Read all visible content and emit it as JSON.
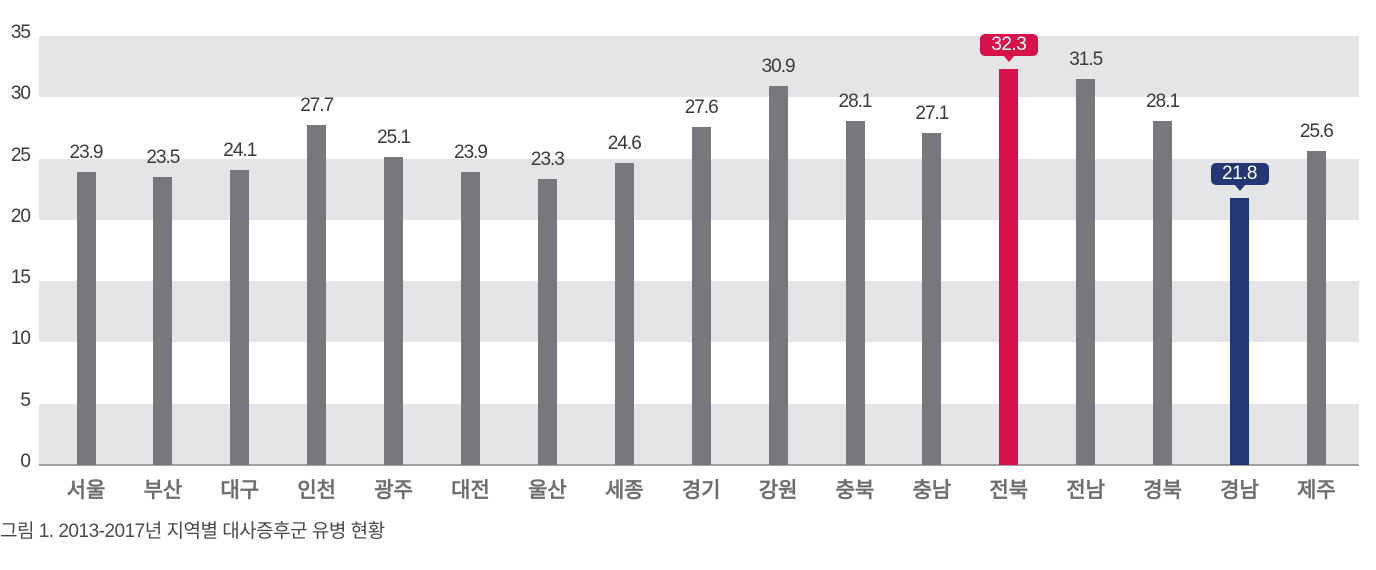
{
  "chart_data": {
    "type": "bar",
    "title": "",
    "caption": "그림 1. 2013-2017년 지역별 대사증후군 유병 현황",
    "xlabel": "",
    "ylabel": "",
    "ylim": [
      0,
      35
    ],
    "yticks": [
      0,
      5,
      10,
      15,
      20,
      25,
      30,
      35
    ],
    "grid": "alternating horizontal bands (0-5, 10-15, 20-25, 30-35 shaded)",
    "legend": null,
    "categories": [
      "서울",
      "부산",
      "대구",
      "인천",
      "광주",
      "대전",
      "울산",
      "세종",
      "경기",
      "강원",
      "충북",
      "충남",
      "전북",
      "전남",
      "경북",
      "경남",
      "제주"
    ],
    "values": [
      23.9,
      23.5,
      24.1,
      27.7,
      25.1,
      23.9,
      23.3,
      24.6,
      27.6,
      30.9,
      28.1,
      27.1,
      32.3,
      31.5,
      28.1,
      21.8,
      25.6
    ],
    "value_labels": [
      "23.9",
      "23.5",
      "24.1",
      "27.7",
      "25.1",
      "23.9",
      "23.3",
      "24.6",
      "27.6",
      "30.9",
      "28.1",
      "27.1",
      "32.3",
      "31.5",
      "28.1",
      "21.8",
      "25.6"
    ],
    "annotations": [
      {
        "category": "전북",
        "value": 32.3,
        "note": "highest, highlighted badge",
        "color": "#d7124a"
      },
      {
        "category": "경남",
        "value": 21.8,
        "note": "lowest, highlighted badge",
        "color": "#243673"
      }
    ]
  },
  "colors": {
    "default_bar": "#77787b",
    "highlight_max": "#d7124a",
    "highlight_min": "#243673",
    "band": "#e4e5e7",
    "axis": "#a0a0a2",
    "category_label": "#6d6e71"
  },
  "highlight": {
    "max_index": 12,
    "min_index": 15
  }
}
